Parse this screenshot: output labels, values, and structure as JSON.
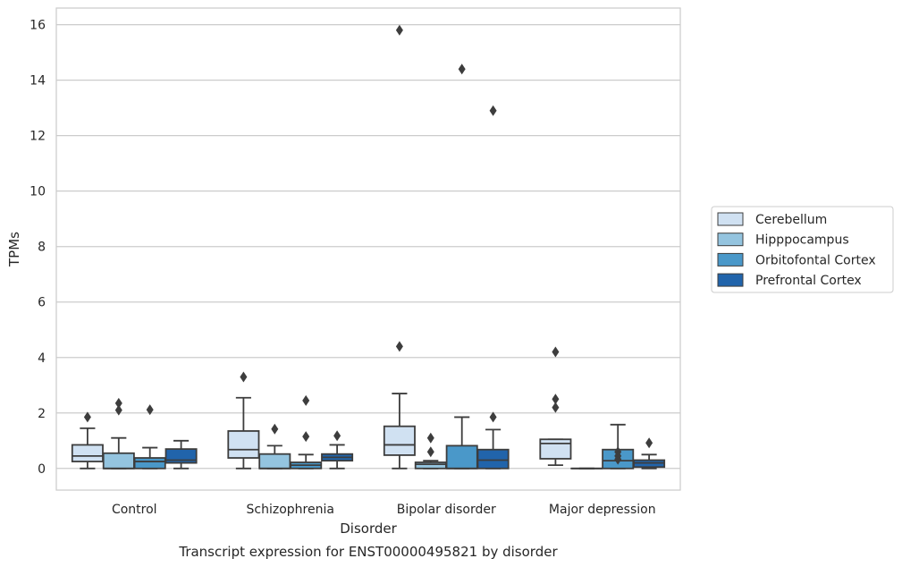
{
  "chart_data": {
    "type": "box",
    "title": "Transcript expression for ENST00000495821 by disorder",
    "xlabel": "Disorder",
    "ylabel": "TPMs",
    "ylim": [
      -0.78,
      16.6
    ],
    "yticks": [
      0,
      2,
      4,
      6,
      8,
      10,
      12,
      14,
      16
    ],
    "grid": "horizontal",
    "legend_position": "right",
    "categories": [
      "Control",
      "Schizophrenia",
      "Bipolar disorder",
      "Major depression"
    ],
    "series": [
      {
        "name": "Cerebellum",
        "color": "#d0e1f2",
        "boxes": [
          {
            "whisker_low": 0.0,
            "q1": 0.25,
            "median": 0.45,
            "q3": 0.85,
            "whisker_high": 1.45,
            "outliers": [
              1.85
            ]
          },
          {
            "whisker_low": 0.0,
            "q1": 0.38,
            "median": 0.68,
            "q3": 1.35,
            "whisker_high": 2.55,
            "outliers": [
              3.3
            ]
          },
          {
            "whisker_low": 0.0,
            "q1": 0.48,
            "median": 0.85,
            "q3": 1.52,
            "whisker_high": 2.7,
            "outliers": [
              15.8,
              4.4
            ]
          },
          {
            "whisker_low": 0.12,
            "q1": 0.35,
            "median": 0.9,
            "q3": 1.05,
            "whisker_high": 1.05,
            "outliers": [
              4.2,
              2.5,
              2.2
            ]
          }
        ]
      },
      {
        "name": "Hipppocampus",
        "color": "#94c4df",
        "boxes": [
          {
            "whisker_low": 0.0,
            "q1": 0.0,
            "median": 0.0,
            "q3": 0.55,
            "whisker_high": 1.1,
            "outliers": [
              2.35,
              2.1
            ]
          },
          {
            "whisker_low": 0.0,
            "q1": 0.0,
            "median": 0.0,
            "q3": 0.52,
            "whisker_high": 0.82,
            "outliers": [
              1.42
            ]
          },
          {
            "whisker_low": 0.0,
            "q1": 0.0,
            "median": 0.15,
            "q3": 0.22,
            "whisker_high": 0.28,
            "outliers": [
              1.1,
              0.6
            ]
          },
          {
            "whisker_low": 0.0,
            "q1": 0.0,
            "median": 0.0,
            "q3": 0.0,
            "whisker_high": 0.0,
            "outliers": []
          }
        ]
      },
      {
        "name": "Orbitofontal Cortex",
        "color": "#4a98c9",
        "boxes": [
          {
            "whisker_low": 0.0,
            "q1": 0.0,
            "median": 0.25,
            "q3": 0.38,
            "whisker_high": 0.75,
            "outliers": [
              2.12
            ]
          },
          {
            "whisker_low": 0.0,
            "q1": 0.0,
            "median": 0.12,
            "q3": 0.22,
            "whisker_high": 0.5,
            "outliers": [
              2.45,
              1.15
            ]
          },
          {
            "whisker_low": 0.0,
            "q1": 0.0,
            "median": 0.0,
            "q3": 0.82,
            "whisker_high": 1.85,
            "outliers": [
              14.4
            ]
          },
          {
            "whisker_low": 0.0,
            "q1": 0.0,
            "median": 0.28,
            "q3": 0.68,
            "whisker_high": 1.58,
            "outliers": [
              0.6,
              0.45,
              0.33
            ]
          }
        ]
      },
      {
        "name": "Prefrontal Cortex",
        "color": "#2164ab",
        "boxes": [
          {
            "whisker_low": 0.0,
            "q1": 0.2,
            "median": 0.3,
            "q3": 0.7,
            "whisker_high": 1.0,
            "outliers": []
          },
          {
            "whisker_low": 0.0,
            "q1": 0.28,
            "median": 0.4,
            "q3": 0.52,
            "whisker_high": 0.85,
            "outliers": [
              1.18
            ]
          },
          {
            "whisker_low": 0.0,
            "q1": 0.0,
            "median": 0.3,
            "q3": 0.68,
            "whisker_high": 1.4,
            "outliers": [
              12.9,
              1.85
            ]
          },
          {
            "whisker_low": 0.0,
            "q1": 0.05,
            "median": 0.2,
            "q3": 0.3,
            "whisker_high": 0.5,
            "outliers": [
              0.92
            ]
          }
        ]
      }
    ]
  }
}
